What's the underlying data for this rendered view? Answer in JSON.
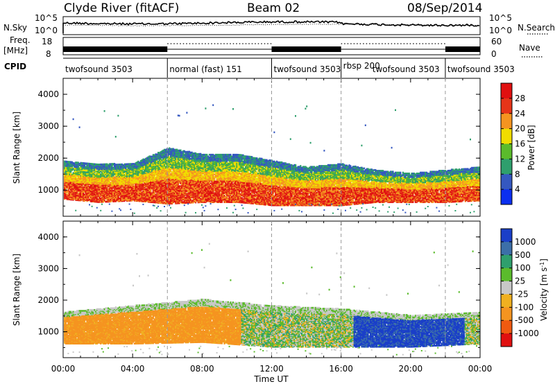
{
  "header": {
    "title": "Clyde River (fitACF)",
    "beam": "Beam 02",
    "date": "08/Sep/2014"
  },
  "noise_panel": {
    "left_label": "N.Sky",
    "right_label": "N.Search",
    "left_ticks": [
      "10^5",
      "10^0"
    ],
    "right_ticks": [
      "10^5",
      "10^0"
    ]
  },
  "freq_panel": {
    "left_label_1": "Freq.",
    "left_label_2": "[MHz]",
    "right_label": "Nave",
    "left_ticks": [
      "18",
      "8"
    ],
    "right_ticks": [
      "60",
      "0"
    ]
  },
  "cpid": {
    "label": "CPID",
    "segments": [
      {
        "start_h": 0,
        "end_h": 6,
        "name": "twofsound 3503"
      },
      {
        "start_h": 6,
        "end_h": 12,
        "name": "normal (fast) 151"
      },
      {
        "start_h": 12,
        "end_h": 16,
        "name": "twofsound 3503"
      },
      {
        "start_h": 16,
        "end_h": 22,
        "name": "rbsp 200"
      },
      {
        "start_h": 22,
        "end_h": 24,
        "name": "twofsound 3503"
      }
    ],
    "overlap_label": "twofsound 3503"
  },
  "chart_data": [
    {
      "type": "heatmap",
      "title": "",
      "quantity": "Power",
      "colorbar_label": "Power [dB]",
      "colorbar_ticks": [
        4,
        8,
        12,
        16,
        20,
        24,
        28
      ],
      "colorbar_colors": [
        "#0b2ff0",
        "#3558c0",
        "#2f9f6d",
        "#5bbb2c",
        "#f0dc00",
        "#f59420",
        "#e63419",
        "#e01010"
      ],
      "ylabel": "Slant Range [km]",
      "yticks": [
        1000,
        2000,
        3000,
        4000
      ],
      "ylim": [
        180,
        4500
      ],
      "xlabel": "",
      "xlim": [
        0,
        24
      ],
      "scatter_band": [
        {
          "t": 0,
          "lo": 700,
          "hi": 1900,
          "core": 950
        },
        {
          "t": 2,
          "lo": 600,
          "hi": 1800,
          "core": 950
        },
        {
          "t": 4,
          "lo": 650,
          "hi": 1800,
          "core": 1000
        },
        {
          "t": 6,
          "lo": 550,
          "hi": 2300,
          "core": 900
        },
        {
          "t": 8,
          "lo": 600,
          "hi": 2100,
          "core": 850
        },
        {
          "t": 10,
          "lo": 600,
          "hi": 2100,
          "core": 1000
        },
        {
          "t": 12,
          "lo": 500,
          "hi": 1900,
          "core": 800
        },
        {
          "t": 14,
          "lo": 500,
          "hi": 1700,
          "core": 750
        },
        {
          "t": 16,
          "lo": 500,
          "hi": 1800,
          "core": 850
        },
        {
          "t": 18,
          "lo": 600,
          "hi": 1600,
          "core": 950
        },
        {
          "t": 20,
          "lo": 600,
          "hi": 1500,
          "core": 900
        },
        {
          "t": 22,
          "lo": 600,
          "hi": 1600,
          "core": 950
        },
        {
          "t": 24,
          "lo": 650,
          "hi": 1700,
          "core": 950
        }
      ]
    },
    {
      "type": "heatmap",
      "title": "",
      "quantity": "Velocity",
      "colorbar_label": "Velocity [m s^-1]",
      "colorbar_ticks": [
        1000,
        500,
        100,
        25,
        -25,
        -100,
        -500,
        -1000
      ],
      "colorbar_colors": [
        "#1a3fc8",
        "#3c6fa8",
        "#2f9f6d",
        "#5bbb2c",
        "#c8c8c8",
        "#f0b020",
        "#f59420",
        "#f05a10",
        "#e01010"
      ],
      "ylabel": "Slant Range [km]",
      "yticks": [
        1000,
        2000,
        3000,
        4000
      ],
      "ylim": [
        180,
        4500
      ],
      "xlabel": "Time UT",
      "xticks": [
        "00:00",
        "04:00",
        "08:00",
        "12:00",
        "16:00",
        "20:00",
        "00:00"
      ],
      "xtick_hours": [
        0,
        4,
        8,
        12,
        16,
        20,
        24
      ],
      "xlim": [
        0,
        24
      ],
      "scatter_band": [
        {
          "t": 0,
          "lo": 600,
          "hi": 1600,
          "vel": -300
        },
        {
          "t": 4,
          "lo": 600,
          "hi": 1800,
          "vel": -400
        },
        {
          "t": 8,
          "lo": 650,
          "hi": 2000,
          "vel": -350
        },
        {
          "t": 12,
          "lo": 500,
          "hi": 1800,
          "vel": 100
        },
        {
          "t": 16,
          "lo": 500,
          "hi": 1700,
          "vel": 200
        },
        {
          "t": 20,
          "lo": 500,
          "hi": 1500,
          "vel": 800
        },
        {
          "t": 24,
          "lo": 600,
          "hi": 1600,
          "vel": 150
        }
      ]
    }
  ]
}
